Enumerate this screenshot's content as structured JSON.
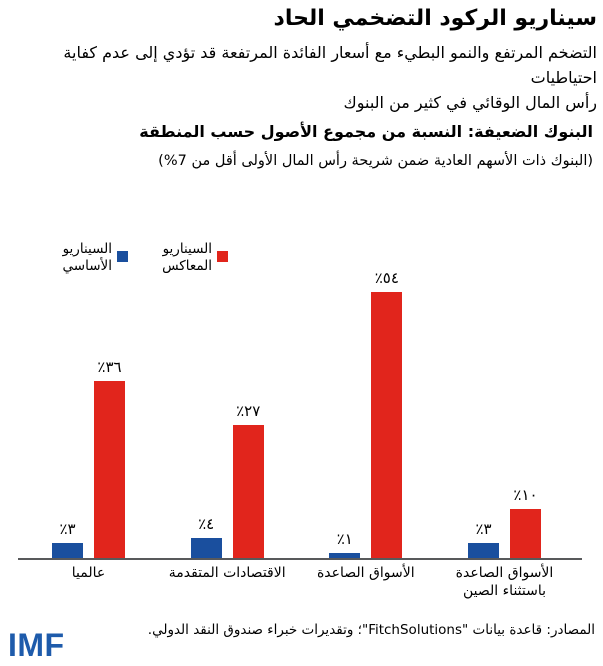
{
  "page": {
    "title": "سيناريو الركود التضخمي الحاد",
    "description": "التضخم المرتفع والنمو البطيء مع أسعار الفائدة المرتفعة قد تؤدي إلى عدم كفاية احتياطيات\nرأس المال الوقائي في كثير من البنوك"
  },
  "chart": {
    "title": "البنوك الضعيفة: النسبة من مجموع الأصول حسب المنطقة",
    "subtitle": "(البنوك ذات الأسهم العادية ضمن شريحة رأس المال الأولى أقل من 7%)"
  },
  "chart_data": {
    "type": "bar",
    "title": "البنوك الضعيفة: النسبة من مجموع الأصول حسب المنطقة",
    "subtitle": "(البنوك ذات الأسهم العادية ضمن شريحة رأس المال الأولى أقل من 7%)",
    "unit": "percent of total assets",
    "categories_display_left_to_right": true,
    "categories": [
      "عالميا",
      "الاقتصادات المتقدمة",
      "الأسواق الصاعدة",
      "الأسواق الصاعدة\nباستثناء الصين"
    ],
    "series": [
      {
        "name": "السيناريو الأساسي",
        "color": "#1a4f9e",
        "values": [
          3,
          4,
          1,
          3
        ],
        "value_labels": [
          "٪٣",
          "٪٤",
          "٪١",
          "٪٣"
        ]
      },
      {
        "name": "السيناريو المعاكس",
        "color": "#e1251c",
        "values": [
          36,
          27,
          54,
          10
        ],
        "value_labels": [
          "٪٣٦",
          "٪٢٧",
          "٪٥٤",
          "٪١٠"
        ]
      }
    ],
    "ylim": [
      0,
      60
    ],
    "grid": false,
    "y_axis_visible": false,
    "legend_position": "top-left",
    "axis_line_color": "#58595b"
  },
  "footer": {
    "source": "المصادر: قاعدة بيانات \"FitchSolutions\"؛ وتقديرات خبراء صندوق النقد الدولي.",
    "logo_text": "IMF",
    "logo_color": "#1e5bab"
  }
}
